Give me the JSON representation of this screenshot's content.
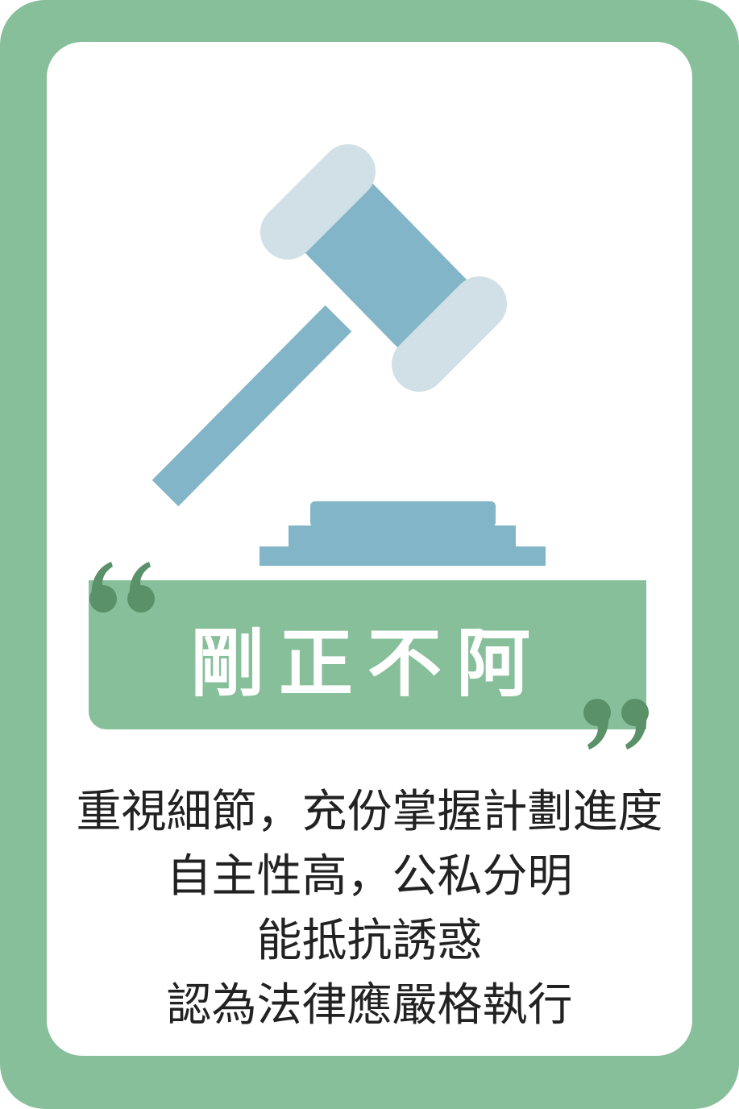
{
  "card": {
    "title": "剛正不阿",
    "description_lines": [
      "重視細節，充份掌握計劃進度",
      "自主性高，公私分明",
      "能抵抗誘惑",
      "認為法律應嚴格執行"
    ]
  },
  "icons": {
    "main": "gavel-icon",
    "quote_open": "open-quote-icon",
    "quote_close": "close-quote-icon"
  },
  "colors": {
    "frame": "#86bf9a",
    "quote": "#5a9168",
    "gavel_body": "#83b5c8",
    "gavel_caps": "#d0e0e6",
    "text": "#222222"
  }
}
